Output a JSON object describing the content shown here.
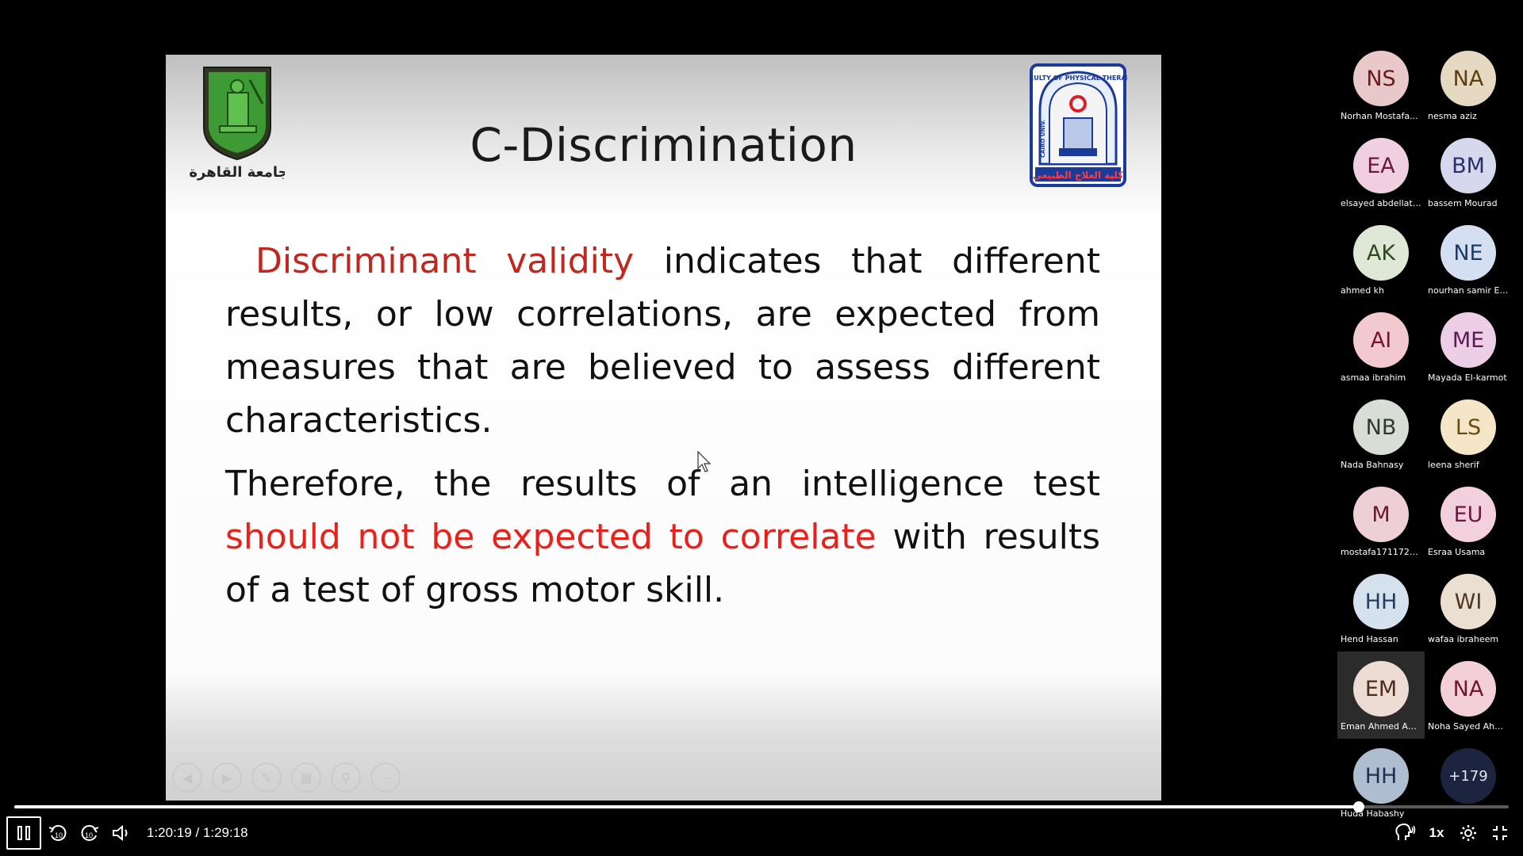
{
  "slide": {
    "title": "C-Discrimination",
    "left_logo_text": "جامعة القاهرة",
    "right_logo_text": "FACULTY OF PHYSICAL THERAPY",
    "right_logo_subtext": "كلية العلاج الطبيعي",
    "right_logo_side": "CAIRO UNIV.",
    "paragraph1": {
      "highlight": "Discriminant validity",
      "text": " indicates that different results, or low correlations, are expected from measures that are believed to assess different characteristics."
    },
    "paragraph2": {
      "lead": "Therefore, the results of an intelligence test ",
      "highlight": "should not be expected to correlate",
      "tail": " with results of a test of gross motor skill."
    }
  },
  "participants": [
    {
      "initials": "NS",
      "name": "Norhan Mostafa...",
      "bg": "#e8c8c8",
      "fg": "#6b1a1a"
    },
    {
      "initials": "NA",
      "name": "nesma aziz",
      "bg": "#e5d9c2",
      "fg": "#5b3d12"
    },
    {
      "initials": "EA",
      "name": "elsayed abdellatife",
      "bg": "#f0cfe0",
      "fg": "#6d1743"
    },
    {
      "initials": "BM",
      "name": "bassem Mourad",
      "bg": "#d6d8ee",
      "fg": "#2a2f6b"
    },
    {
      "initials": "AK",
      "name": "ahmed kh",
      "bg": "#dfe8d6",
      "fg": "#2d4a1e"
    },
    {
      "initials": "NE",
      "name": "nourhan samir Eb...",
      "bg": "#d4e0f2",
      "fg": "#1d3a6b"
    },
    {
      "initials": "AI",
      "name": "asmaa ibrahim",
      "bg": "#f3c9d0",
      "fg": "#7a1428"
    },
    {
      "initials": "ME",
      "name": "Mayada El-karmot",
      "bg": "#eccfe7",
      "fg": "#5d1a56"
    },
    {
      "initials": "NB",
      "name": "Nada Bahnasy",
      "bg": "#d8ded6",
      "fg": "#2e3a2c"
    },
    {
      "initials": "LS",
      "name": "leena sherif",
      "bg": "#f6e6c8",
      "fg": "#6a4a10"
    },
    {
      "initials": "M",
      "name": "mostafa171172@b...",
      "bg": "#efcfd6",
      "fg": "#6b1a2b"
    },
    {
      "initials": "EU",
      "name": "Esraa Usama",
      "bg": "#f2d0de",
      "fg": "#6c1840"
    },
    {
      "initials": "HH",
      "name": "Hend Hassan",
      "bg": "#d5e1ec",
      "fg": "#22405c"
    },
    {
      "initials": "WI",
      "name": "wafaa ibraheem",
      "bg": "#ebdfd2",
      "fg": "#4e3620"
    },
    {
      "initials": "EM",
      "name": "Eman Ahmed Ab...",
      "bg": "#ecdcd4",
      "fg": "#4d2a1a"
    },
    {
      "initials": "NA",
      "name": "Noha Sayed Ahm...",
      "bg": "#f3cfd8",
      "fg": "#6c1830"
    },
    {
      "initials": "HH",
      "name": "Huda Habashy",
      "bg": "#aebdd0",
      "fg": "#1f3350"
    },
    {
      "initials": "+179",
      "name": "",
      "bg": "#1c2440",
      "fg": "#e5e7ef"
    }
  ],
  "player": {
    "time": "1:20:19 / 1:29:18",
    "progress": 0.8996,
    "speed": "1x",
    "skip_back": "10",
    "skip_forward": "10"
  },
  "colors": {
    "red_term": "#c0271f",
    "red_emphasis": "#e8211a"
  }
}
